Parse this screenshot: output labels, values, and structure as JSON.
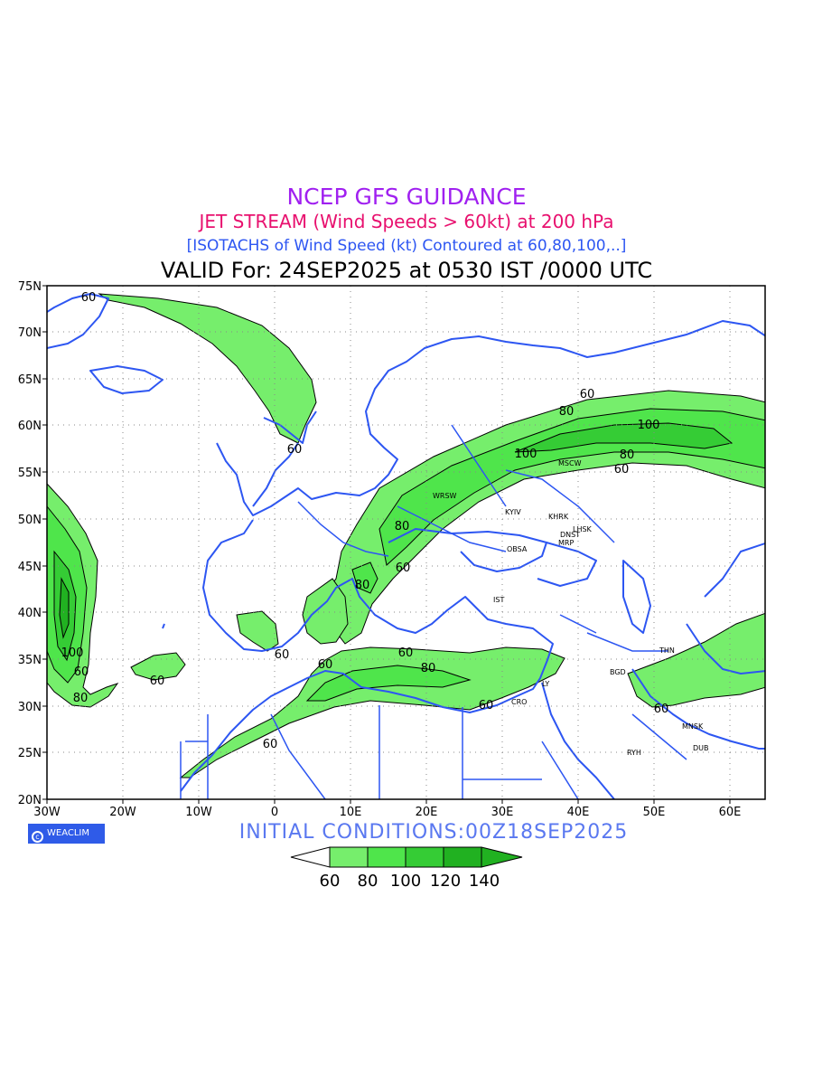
{
  "header": {
    "title": "NCEP GFS GUIDANCE",
    "subtitle": "JET STREAM (Wind Speeds > 60kt) at 200 hPa",
    "description": "[ISOTACHS of Wind Speed (kt) Contoured at 60,80,100,..]",
    "valid": "VALID For: 24SEP2025 at 0530 IST /0000 UTC"
  },
  "footer": {
    "initial_conditions": "INITIAL CONDITIONS:00Z18SEP2025",
    "badge": "WEACLIM"
  },
  "map": {
    "lon_labels": [
      "30W",
      "20W",
      "10W",
      "0",
      "10E",
      "20E",
      "30E",
      "40E",
      "50E",
      "60E"
    ],
    "lat_labels": [
      "75N",
      "70N",
      "65N",
      "60N",
      "55N",
      "50N",
      "45N",
      "40N",
      "35N",
      "30N",
      "25N",
      "20N"
    ],
    "contour_labels": [
      "60",
      "60",
      "60",
      "80",
      "100",
      "100",
      "80",
      "60",
      "80",
      "60",
      "80",
      "60",
      "60",
      "60",
      "80",
      "60",
      "60",
      "60",
      "100",
      "60",
      "80",
      "60",
      "60"
    ],
    "cities": [
      "MSCW",
      "WRSW",
      "KYIV",
      "KHRK",
      "LHSK",
      "DNST",
      "MRP",
      "OBSA",
      "IST",
      "THN",
      "BGD",
      "CRO",
      "LY",
      "MNSK",
      "RYH",
      "DUB"
    ]
  },
  "legend": {
    "labels": [
      "60",
      "80",
      "100",
      "120",
      "140"
    ],
    "colors": [
      "#ffffff",
      "#76ee6c",
      "#4fe54b",
      "#35cc35",
      "#21b121"
    ]
  },
  "colors": {
    "title": "#a020f0",
    "subtitle": "#e8106e",
    "description": "#2d56f2",
    "coast": "#2d56f2",
    "fill80": "#76ee6c",
    "fill100": "#4fe54b",
    "fill120": "#35cc35"
  }
}
